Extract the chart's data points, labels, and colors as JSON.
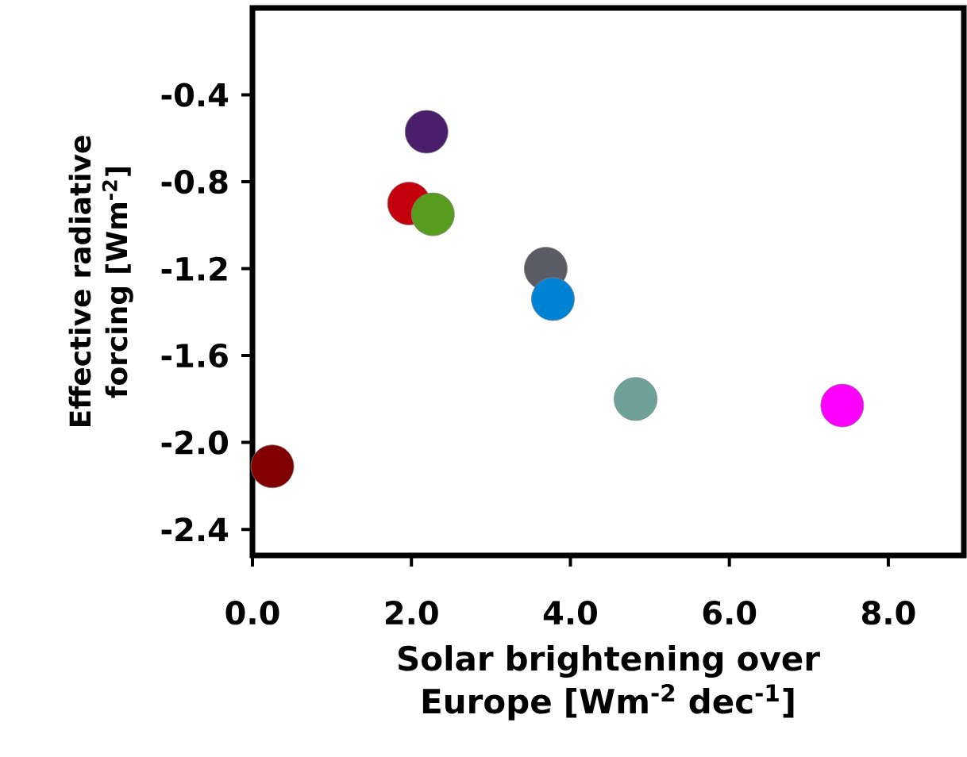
{
  "chart_data": {
    "type": "scatter",
    "xlabel": "Solar brightening over Europe [Wm$^{-2}$ dec$^{-1}$]",
    "ylabel": "Effective radiative forcing [Wm$^{-2}$]",
    "x": [
      0.25,
      2.19,
      1.97,
      2.27,
      3.69,
      3.78,
      4.82,
      7.42
    ],
    "values": [
      -2.11,
      -0.57,
      -0.9,
      -0.95,
      -1.2,
      -1.34,
      -1.8,
      -1.83
    ],
    "colors": [
      "#800000",
      "#4b1e6b",
      "#c4000c",
      "#579c1f",
      "#5b5b66",
      "#0083d4",
      "#6fa19b",
      "#ff00ff"
    ],
    "marker": "circle",
    "xlim": [
      0,
      8.95
    ],
    "ylim": [
      -2.52,
      0
    ],
    "xticks": [
      {
        "value": 0,
        "label": "0.0"
      },
      {
        "value": 2,
        "label": "2.0"
      },
      {
        "value": 4,
        "label": "4.0"
      },
      {
        "value": 6,
        "label": "6.0"
      },
      {
        "value": 8,
        "label": "8.0"
      }
    ],
    "yticks": [
      {
        "value": -0.4,
        "label": "-0.4"
      },
      {
        "value": -0.8,
        "label": "-0.8"
      },
      {
        "value": -1.2,
        "label": "-1.2"
      },
      {
        "value": -1.6,
        "label": "-1.6"
      },
      {
        "value": -2.0,
        "label": "-2.0"
      },
      {
        "value": -2.4,
        "label": "-2.4"
      }
    ]
  }
}
